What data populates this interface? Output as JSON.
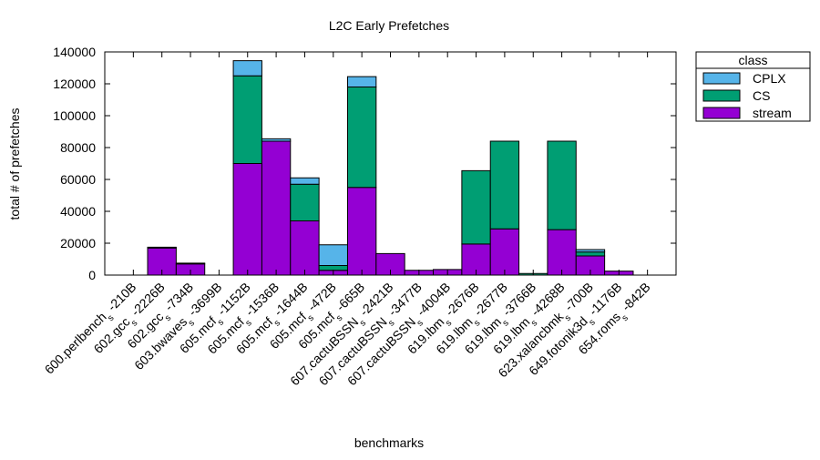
{
  "chart_data": {
    "type": "bar",
    "stacked": true,
    "title": "L2C Early Prefetches",
    "xlabel": "benchmarks",
    "ylabel": "total # of prefetches",
    "ylim": [
      0,
      140000
    ],
    "yticks": [
      0,
      20000,
      40000,
      60000,
      80000,
      100000,
      120000,
      140000
    ],
    "grid": false,
    "legend_title": "class",
    "legend_position": "outside-top-right",
    "categories": [
      {
        "base": "600.perlbench",
        "sub": "s",
        "suffix": "-210B"
      },
      {
        "base": "602.gcc",
        "sub": "s",
        "suffix": "-2226B"
      },
      {
        "base": "602.gcc",
        "sub": "s",
        "suffix": "-734B"
      },
      {
        "base": "603.bwaves",
        "sub": "s",
        "suffix": "-3699B"
      },
      {
        "base": "605.mcf",
        "sub": "s",
        "suffix": "-1152B"
      },
      {
        "base": "605.mcf",
        "sub": "s",
        "suffix": "-1536B"
      },
      {
        "base": "605.mcf",
        "sub": "s",
        "suffix": "-1644B"
      },
      {
        "base": "605.mcf",
        "sub": "s",
        "suffix": "-472B"
      },
      {
        "base": "605.mcf",
        "sub": "s",
        "suffix": "-665B"
      },
      {
        "base": "607.cactuBSSN",
        "sub": "s",
        "suffix": "-2421B"
      },
      {
        "base": "607.cactuBSSN",
        "sub": "s",
        "suffix": "-3477B"
      },
      {
        "base": "607.cactuBSSN",
        "sub": "s",
        "suffix": "-4004B"
      },
      {
        "base": "619.lbm",
        "sub": "s",
        "suffix": "-2676B"
      },
      {
        "base": "619.lbm",
        "sub": "s",
        "suffix": "-2677B"
      },
      {
        "base": "619.lbm",
        "sub": "s",
        "suffix": "-3766B"
      },
      {
        "base": "619.lbm",
        "sub": "s",
        "suffix": "-4268B"
      },
      {
        "base": "623.xalancbmk",
        "sub": "s",
        "suffix": "-700B"
      },
      {
        "base": "649.fotonik3d",
        "sub": "s",
        "suffix": "-1176B"
      },
      {
        "base": "654.roms",
        "sub": "s",
        "suffix": "-842B"
      }
    ],
    "series": [
      {
        "name": "stream",
        "color": "#9400d3",
        "values": [
          0,
          17000,
          7000,
          0,
          70000,
          84000,
          34000,
          3000,
          55000,
          13500,
          3000,
          3500,
          19500,
          29000,
          0,
          28500,
          12000,
          2500,
          0
        ]
      },
      {
        "name": "CS",
        "color": "#009e73",
        "values": [
          0,
          500,
          500,
          0,
          55000,
          0,
          23000,
          3000,
          63000,
          0,
          0,
          0,
          46000,
          55000,
          1000,
          55500,
          2500,
          0,
          0
        ]
      },
      {
        "name": "CPLX",
        "color": "#56b4e9",
        "values": [
          0,
          0,
          0,
          0,
          9500,
          1500,
          4000,
          13000,
          6500,
          0,
          0,
          0,
          0,
          0,
          0,
          0,
          1500,
          0,
          0
        ]
      }
    ],
    "legend_order": [
      "CPLX",
      "CS",
      "stream"
    ]
  }
}
